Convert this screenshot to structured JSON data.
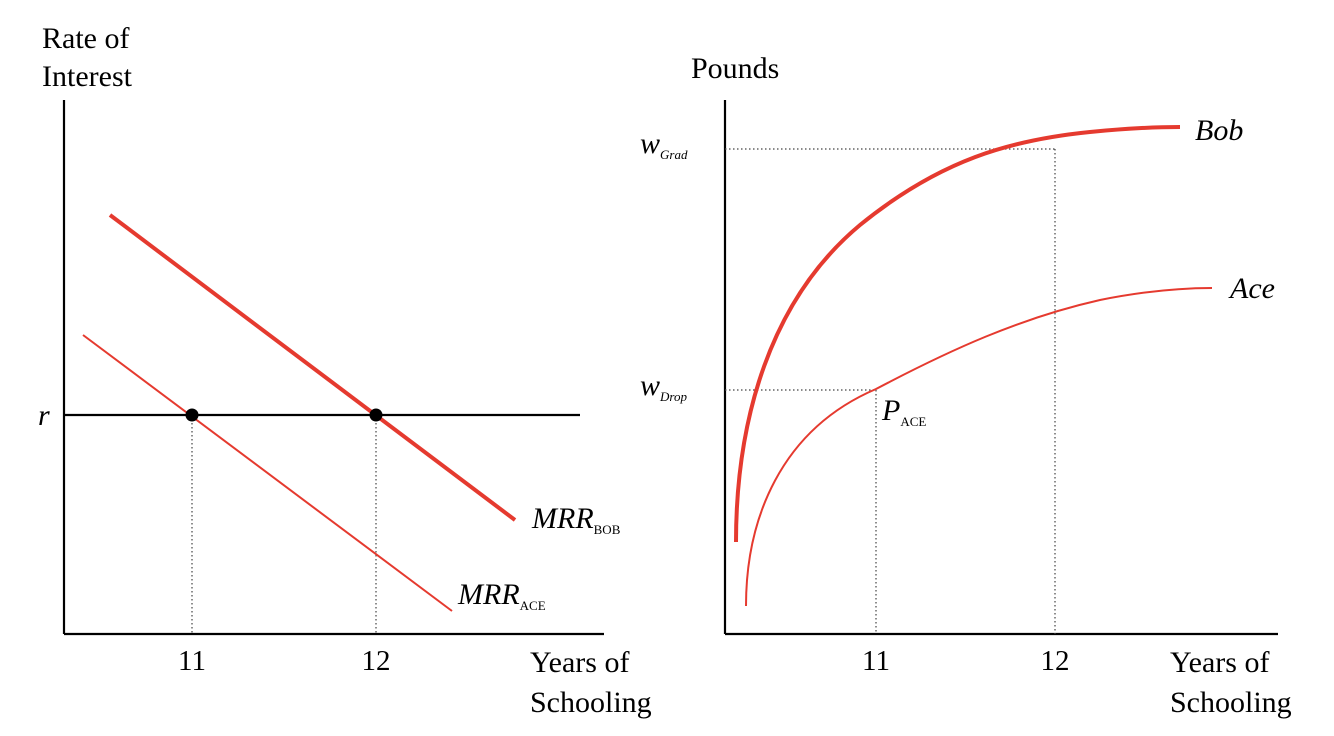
{
  "chart_data": [
    {
      "type": "line",
      "title": "",
      "ylabel": [
        "Rate of",
        "Interest"
      ],
      "xlabel": [
        "Years of",
        "Schooling"
      ],
      "x_ticks": [
        "11",
        "12"
      ],
      "rate_label": "r",
      "series": [
        {
          "name": "MRR",
          "sub": "BOB",
          "color": "#e53a2f",
          "thick": true,
          "values": []
        },
        {
          "name": "MRR",
          "sub": "ACE",
          "color": "#e53a2f",
          "thick": false,
          "values": []
        }
      ],
      "equilibria": [
        {
          "series": "MRR_ACE",
          "x": "11"
        },
        {
          "series": "MRR_BOB",
          "x": "12"
        }
      ]
    },
    {
      "type": "line",
      "title": "",
      "ylabel": "Pounds",
      "xlabel": [
        "Years of",
        "Schooling"
      ],
      "x_ticks": [
        "11",
        "12"
      ],
      "y_ticks": [
        {
          "main": "w",
          "sub": "Grad"
        },
        {
          "main": "w",
          "sub": "Drop"
        }
      ],
      "series": [
        {
          "name": "Bob",
          "color": "#e53a2f",
          "thick": true
        },
        {
          "name": "Ace",
          "color": "#e53a2f",
          "thick": false
        }
      ],
      "point": {
        "main": "P",
        "sub": "ACE"
      }
    }
  ]
}
